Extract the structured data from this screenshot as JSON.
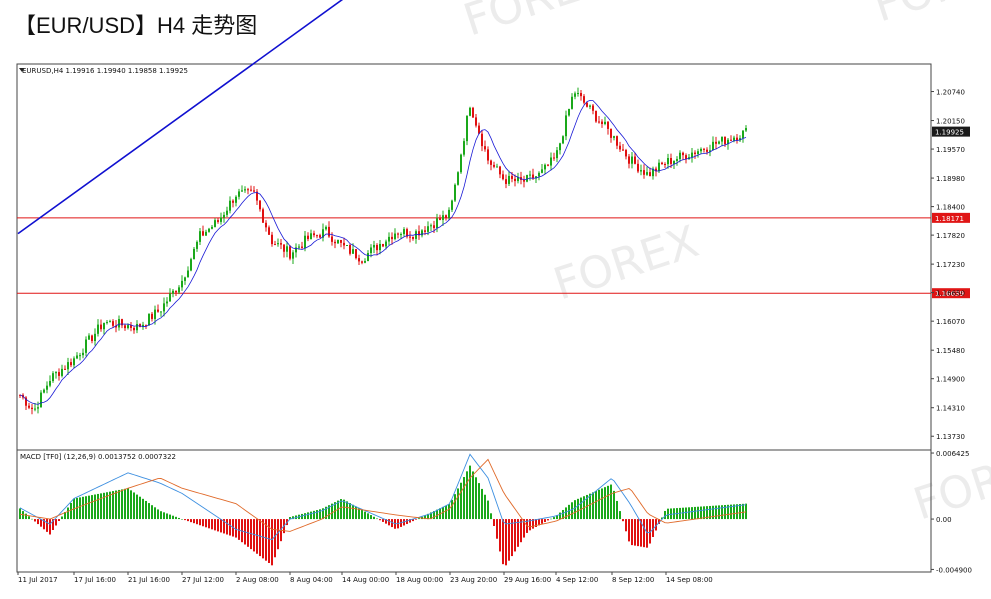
{
  "header": {
    "title": "【EUR/USD】H4 走势图"
  },
  "watermark": {
    "text": "FOREX"
  },
  "colors": {
    "bull": "#1aa81a",
    "bear": "#e01010",
    "ma": "#1a1ad6",
    "channel": "#1010d0",
    "hline": "#e01515",
    "macd_line": "#3d8fe0",
    "signal_line": "#e06a2a",
    "price_box": "#1a1a1a",
    "hline_box": "#e01515"
  },
  "chart_data": [
    {
      "type": "candlestick",
      "symbol_header": "EURUSD,H4  1.19916 1.19940 1.19858 1.19925",
      "ylim": [
        1.1345,
        1.213
      ],
      "y_ticks": [
        "1.20740",
        "1.20150",
        "1.19570",
        "1.18980",
        "1.18400",
        "1.17820",
        "1.17230",
        "1.16650",
        "1.16070",
        "1.15480",
        "1.14900",
        "1.14310",
        "1.13730"
      ],
      "current_price_label": "1.19925",
      "current_price": 1.19925,
      "horizontal_levels": [
        {
          "label": "1.18171",
          "value": 1.18171
        },
        {
          "label": "1.16639",
          "value": 1.16639
        }
      ],
      "channel_lines": [
        {
          "points": [
            [
              "11 Jul 2017",
              1.1785
            ],
            [
              "2 Aug 08:00",
              1.2105
            ]
          ]
        },
        {
          "points": [
            [
              "19 Jul 04:00",
              1.1367
            ],
            [
              "14 Sep 08:00",
              1.1814
            ],
            [
              "15 Sep 20:00",
              1.1922
            ]
          ]
        }
      ],
      "close_path_keys": [
        "11 Jul 2017",
        "13 Jul 04:00",
        "15 Jul 00:00",
        "17 Jul 16:00",
        "20 Jul 00:00",
        "22 Jul 16:00",
        "25 Jul 04:00",
        "27 Jul 12:00",
        "29 Jul 08:00",
        "31 Jul 04:00",
        "2 Aug 08:00",
        "4 Aug 04:00",
        "6 Aug 00:00",
        "8 Aug 04:00",
        "10 Aug 04:00",
        "12 Aug 00:00",
        "14 Aug 00:00",
        "16 Aug 04:00",
        "18 Aug 00:00",
        "20 Aug 00:00",
        "23 Aug 20:00",
        "25 Aug 16:00",
        "27 Aug 12:00",
        "29 Aug 16:00",
        "31 Aug 12:00",
        "2 Sep 08:00",
        "4 Sep 12:00",
        "6 Sep 08:00",
        "8 Sep 12:00",
        "10 Sep 08:00",
        "12 Sep 04:00",
        "14 Sep 08:00",
        "15 Sep 20:00"
      ],
      "close_path_values": [
        1.1462,
        1.1425,
        1.149,
        1.153,
        1.1605,
        1.1595,
        1.163,
        1.169,
        1.178,
        1.181,
        1.1865,
        1.1865,
        1.177,
        1.1745,
        1.1775,
        1.179,
        1.176,
        1.1735,
        1.179,
        1.1785,
        1.1825,
        1.205,
        1.1935,
        1.1895,
        1.189,
        1.1905,
        1.194,
        1.2075,
        1.1985,
        1.1935,
        1.1905,
        1.193,
        1.1992
      ],
      "x_labels": [
        "11 Jul 2017",
        "17 Jul 16:00",
        "21 Jul 16:00",
        "27 Jul 12:00",
        "2 Aug 08:00",
        "8 Aug 04:00",
        "14 Aug 00:00",
        "18 Aug 00:00",
        "23 Aug 20:00",
        "29 Aug 16:00",
        "4 Sep 12:00",
        "8 Sep 12:00",
        "14 Sep 08:00"
      ],
      "x_label_positions": [
        18,
        74,
        128,
        182,
        236,
        290,
        342,
        396,
        450,
        504,
        556,
        612,
        666
      ]
    },
    {
      "type": "histogram",
      "title": "MACD (TF0) (12,26,9) 0.0013752 0.0007322",
      "header_label": "MACD [TF0] (12,26,9) 0.0013752 0.0007322",
      "ylim": [
        -0.00515,
        0.00672
      ],
      "y_ticks": [
        "0.006425",
        "0.00",
        "-0.004900"
      ],
      "histogram_keys": [
        "11 Jul 2017",
        "15 Jul 00:00",
        "17 Jul 16:00",
        "21 Jul 16:00",
        "25 Jul 04:00",
        "27 Jul 12:00",
        "2 Aug 08:00",
        "6 Aug 00:00",
        "8 Aug 04:00",
        "11 Aug 16:00",
        "14 Aug 00:00",
        "18 Aug 00:00",
        "21 Aug 16:00",
        "23 Aug 20:00",
        "25 Aug 16:00",
        "27 Aug 12:00",
        "29 Aug 16:00",
        "1 Sep 00:00",
        "4 Sep 12:00",
        "6 Sep 08:00",
        "8 Sep 12:00",
        "10 Sep 08:00",
        "12 Sep 04:00",
        "14 Sep 08:00",
        "15 Sep 20:00"
      ],
      "histogram_values": [
        0.0012,
        -0.0015,
        0.002,
        0.003,
        0.0008,
        0.0,
        -0.0018,
        -0.0045,
        0.0002,
        0.001,
        0.002,
        -0.001,
        0.0006,
        0.0015,
        0.0052,
        0.0018,
        -0.0048,
        -0.0012,
        0.0003,
        0.0018,
        0.0034,
        -0.0025,
        -0.0028,
        0.001,
        0.0015
      ],
      "macd_line_values": [
        0.0012,
        -0.0005,
        0.002,
        0.0045,
        0.0035,
        0.0025,
        -0.001,
        -0.002,
        0.0,
        0.0008,
        0.0018,
        -0.0005,
        0.0005,
        0.0015,
        0.0063,
        0.004,
        -0.0005,
        -0.0002,
        0.0003,
        0.001,
        0.004,
        0.0015,
        -0.0015,
        0.0004,
        0.0014
      ],
      "signal_line_values": [
        0.0005,
        0.0,
        0.001,
        0.003,
        0.004,
        0.003,
        0.0015,
        -0.001,
        -0.0012,
        0.0,
        0.0012,
        0.0004,
        0.0,
        0.001,
        0.004,
        0.0058,
        0.0025,
        -0.0008,
        -0.0002,
        0.0006,
        0.0025,
        0.003,
        0.0005,
        -0.0004,
        0.0007
      ]
    }
  ]
}
